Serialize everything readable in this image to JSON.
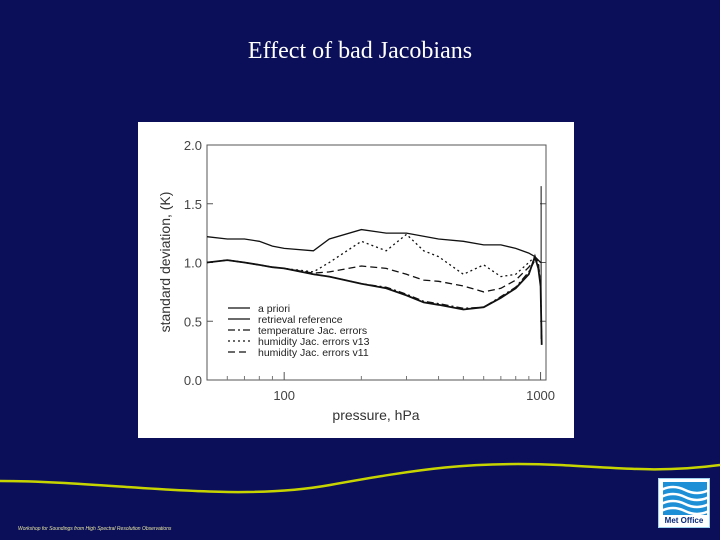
{
  "slide": {
    "title": "Effect of bad Jacobians",
    "footer": "Workshop for Soundings from High Spectral Resolution Observations",
    "logo_text": "Met Office"
  },
  "colors": {
    "background": "#0b0f5a",
    "wave": "#c8d400",
    "title": "#ffffff",
    "logo_blue": "#1c8fd6"
  },
  "chart_data": {
    "type": "line",
    "title": "",
    "xlabel": "pressure, hPa",
    "ylabel": "standard deviation, (K)",
    "xscale": "log",
    "xlim": [
      50,
      1050
    ],
    "ylim": [
      0.0,
      2.0
    ],
    "yticks": [
      "0.0",
      "0.5",
      "1.0",
      "1.5",
      "2.0"
    ],
    "xticks": [
      "100",
      "1000"
    ],
    "grid": false,
    "legend_position": "lower-left",
    "series": [
      {
        "name": "a priori",
        "dash": "solid",
        "x": [
          50,
          60,
          70,
          80,
          90,
          100,
          130,
          150,
          200,
          250,
          300,
          400,
          500,
          600,
          700,
          800,
          900,
          950,
          1000
        ],
        "y": [
          1.22,
          1.2,
          1.2,
          1.18,
          1.14,
          1.12,
          1.1,
          1.2,
          1.28,
          1.25,
          1.25,
          1.2,
          1.18,
          1.15,
          1.15,
          1.12,
          1.08,
          1.05,
          1.0
        ]
      },
      {
        "name": "retrieval reference",
        "dash": "solid",
        "x": [
          50,
          60,
          70,
          80,
          90,
          100,
          130,
          150,
          200,
          250,
          300,
          350,
          400,
          500,
          600,
          700,
          800,
          900,
          950,
          980,
          1000,
          1010
        ],
        "y": [
          1.0,
          1.02,
          1.0,
          0.98,
          0.96,
          0.95,
          0.9,
          0.88,
          0.82,
          0.78,
          0.72,
          0.66,
          0.64,
          0.6,
          0.62,
          0.7,
          0.78,
          0.9,
          1.05,
          0.95,
          0.8,
          0.3
        ]
      },
      {
        "name": "temperature Jac. errors",
        "dash": "dashdot",
        "x": [
          50,
          60,
          70,
          80,
          90,
          100,
          130,
          150,
          200,
          250,
          300,
          350,
          400,
          500,
          600,
          700,
          800,
          900,
          950,
          980,
          1000,
          1010
        ],
        "y": [
          1.0,
          1.02,
          1.0,
          0.98,
          0.96,
          0.95,
          0.9,
          0.88,
          0.82,
          0.79,
          0.73,
          0.67,
          0.65,
          0.61,
          0.62,
          0.71,
          0.79,
          0.92,
          1.02,
          0.98,
          0.82,
          0.3
        ]
      },
      {
        "name": "humidity Jac. errors v13",
        "dash": "dotted",
        "x": [
          50,
          60,
          70,
          80,
          90,
          100,
          130,
          150,
          200,
          250,
          300,
          350,
          400,
          500,
          600,
          700,
          800,
          900,
          950,
          980,
          1000
        ],
        "y": [
          1.0,
          1.02,
          1.0,
          0.98,
          0.96,
          0.95,
          0.92,
          1.0,
          1.18,
          1.1,
          1.24,
          1.1,
          1.05,
          0.9,
          0.98,
          0.88,
          0.9,
          1.0,
          1.05,
          1.0,
          0.8
        ]
      },
      {
        "name": "humidity Jac. errors v11",
        "dash": "dashed",
        "x": [
          50,
          60,
          70,
          80,
          90,
          100,
          130,
          150,
          200,
          250,
          300,
          350,
          400,
          500,
          600,
          700,
          800,
          900,
          950,
          980,
          1000
        ],
        "y": [
          1.0,
          1.02,
          1.0,
          0.98,
          0.96,
          0.95,
          0.91,
          0.92,
          0.97,
          0.95,
          0.9,
          0.85,
          0.84,
          0.8,
          0.75,
          0.78,
          0.85,
          0.96,
          1.03,
          1.0,
          0.8
        ]
      }
    ]
  }
}
